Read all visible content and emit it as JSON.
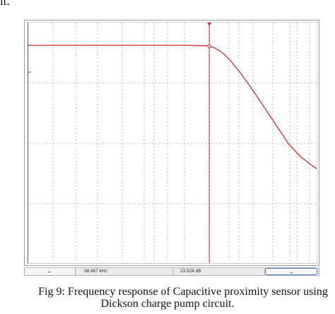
{
  "document": {
    "top_fragment": "it.",
    "caption_line1": "Fig 9: Frequency response of Capacitive proximity sensor using",
    "caption_line2": "Dickson charge pump circuit."
  },
  "statusbar": {
    "left_arrow": "←",
    "frequency_readout": "38.467 kHz",
    "gain_readout": "23.524 dB",
    "right_arrow": "→"
  },
  "chart_data": {
    "type": "line",
    "title": "",
    "xlabel": "",
    "ylabel": "",
    "x_scale": "log",
    "grid": true,
    "grid_style": "dotted",
    "xlim": [
      0,
      1
    ],
    "ylim": [
      0,
      1
    ],
    "cursor": {
      "x": 0.625,
      "frequency_label": "38.467 kHz",
      "gain_label": "23.524 dB"
    },
    "series": [
      {
        "color": "#d42a2a",
        "x": [
          0.0,
          0.2,
          0.4,
          0.55,
          0.62,
          0.64,
          0.66,
          0.68,
          0.7,
          0.74,
          0.78,
          0.82,
          0.86,
          0.9,
          0.94,
          0.97,
          1.0
        ],
        "y": [
          0.906,
          0.906,
          0.906,
          0.906,
          0.904,
          0.897,
          0.884,
          0.865,
          0.84,
          0.78,
          0.712,
          0.64,
          0.568,
          0.496,
          0.446,
          0.417,
          0.392
        ]
      }
    ]
  }
}
